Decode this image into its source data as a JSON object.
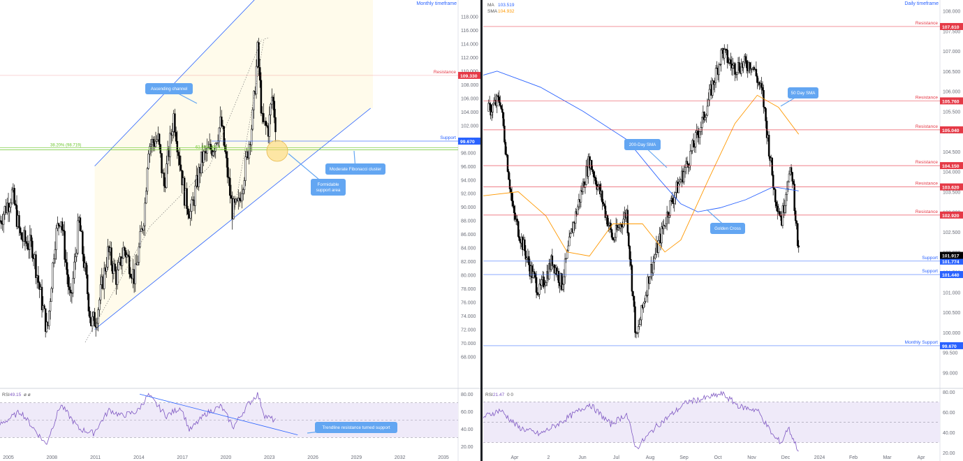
{
  "colors": {
    "up": "#000000",
    "down": "#000000",
    "resistance": "#e53946",
    "support": "#2962ff",
    "channel": "#2962ff",
    "channel_fill": "#fffbeb",
    "fib": "#6ac52a",
    "ma": "#2962ff",
    "sma": "#ff9800",
    "rsi": "#7e57c2",
    "rsi_band": "#efeaf9",
    "callout": "#63a6f2",
    "callout_text": "#ffffff",
    "circle": "#fbd974"
  },
  "chart_data": [
    {
      "type": "candlestick",
      "timeframe_label": "Monthly timeframe",
      "x_axis": {
        "type": "date",
        "range": [
          "2005-01",
          "2036-06"
        ],
        "ticks": [
          "2005",
          "2008",
          "2011",
          "2014",
          "2017",
          "2020",
          "2023",
          "2026",
          "2029",
          "2032",
          "2035"
        ]
      },
      "y_axis": {
        "range": [
          66.0,
          120.0
        ],
        "ticks": [
          "118.000",
          "116.000",
          "114.000",
          "112.000",
          "110.000",
          "108.000",
          "106.000",
          "104.000",
          "102.000",
          "100.000",
          "98.000",
          "96.000",
          "94.000",
          "92.000",
          "90.000",
          "88.000",
          "86.000",
          "84.000",
          "82.000",
          "80.000",
          "78.000",
          "76.000",
          "74.000",
          "72.000",
          "70.000",
          "68.000"
        ]
      },
      "ohlc_anchors": [
        {
          "date": "2005-01",
          "close": 88.0
        },
        {
          "date": "2005-11",
          "close": 92.0
        },
        {
          "date": "2006-06",
          "close": 85.5
        },
        {
          "date": "2007-04",
          "close": 84.0
        },
        {
          "date": "2007-10",
          "close": 77.5
        },
        {
          "date": "2008-04",
          "close": 71.5
        },
        {
          "date": "2008-10",
          "close": 85.0
        },
        {
          "date": "2009-03",
          "close": 89.0
        },
        {
          "date": "2009-11",
          "close": 75.5
        },
        {
          "date": "2010-06",
          "close": 88.0
        },
        {
          "date": "2011-04",
          "close": 73.0
        },
        {
          "date": "2011-08",
          "close": 73.5
        },
        {
          "date": "2012-06",
          "close": 83.5
        },
        {
          "date": "2013-01",
          "close": 79.5
        },
        {
          "date": "2013-07",
          "close": 84.0
        },
        {
          "date": "2014-04",
          "close": 79.5
        },
        {
          "date": "2014-12",
          "close": 89.5
        },
        {
          "date": "2015-03",
          "close": 99.0
        },
        {
          "date": "2015-11",
          "close": 100.0
        },
        {
          "date": "2016-04",
          "close": 93.0
        },
        {
          "date": "2016-12",
          "close": 103.5
        },
        {
          "date": "2017-09",
          "close": 91.5
        },
        {
          "date": "2018-02",
          "close": 89.0
        },
        {
          "date": "2018-11",
          "close": 97.0
        },
        {
          "date": "2019-09",
          "close": 99.0
        },
        {
          "date": "2020-03",
          "close": 102.5
        },
        {
          "date": "2020-12",
          "close": 89.5
        },
        {
          "date": "2021-05",
          "close": 90.0
        },
        {
          "date": "2021-11",
          "close": 96.0
        },
        {
          "date": "2022-05",
          "close": 103.0
        },
        {
          "date": "2022-09",
          "close": 113.0
        },
        {
          "date": "2023-01",
          "close": 102.0
        },
        {
          "date": "2023-06",
          "close": 101.5
        },
        {
          "date": "2023-09",
          "close": 106.5
        },
        {
          "date": "2023-12",
          "close": 101.9
        }
      ],
      "levels": [
        {
          "kind": "resistance",
          "label": "Resistance",
          "value": 109.33,
          "tag": "109.330"
        },
        {
          "kind": "support",
          "label": "Support",
          "value": 99.67,
          "tag": "99.670"
        }
      ],
      "fibonacci": [
        {
          "label": "38.20% (98.719)",
          "value": 98.719
        },
        {
          "label": "61.80% (98.4__)",
          "value": 98.4
        }
      ],
      "channel": {
        "upper": [
          {
            "date": "2011-07",
            "value": 96.0
          },
          {
            "date": "2024-07",
            "value": 125.0
          }
        ],
        "lower": [
          {
            "date": "2011-07",
            "value": 72.0
          },
          {
            "date": "2030-06",
            "value": 104.5
          }
        ]
      },
      "annotations": [
        "Ascending channel",
        "Moderate Fibonacci cluster",
        "Formidable support area"
      ],
      "rsi": {
        "label": "RSI",
        "value": "49.15",
        "params": "ø  ø",
        "y_ticks": [
          "80.00",
          "60.00",
          "40.00",
          "20.00"
        ],
        "y_range": [
          15,
          85
        ],
        "band": [
          30,
          70
        ],
        "anchors": [
          {
            "date": "2005-01",
            "value": 45
          },
          {
            "date": "2006-06",
            "value": 60
          },
          {
            "date": "2008-03",
            "value": 22
          },
          {
            "date": "2009-03",
            "value": 68
          },
          {
            "date": "2010-06",
            "value": 40
          },
          {
            "date": "2011-06",
            "value": 35
          },
          {
            "date": "2012-07",
            "value": 62
          },
          {
            "date": "2013-05",
            "value": 55
          },
          {
            "date": "2014-06",
            "value": 60
          },
          {
            "date": "2015-03",
            "value": 79
          },
          {
            "date": "2016-06",
            "value": 55
          },
          {
            "date": "2017-06",
            "value": 65
          },
          {
            "date": "2018-01",
            "value": 38
          },
          {
            "date": "2019-03",
            "value": 58
          },
          {
            "date": "2020-03",
            "value": 66
          },
          {
            "date": "2021-01",
            "value": 42
          },
          {
            "date": "2022-01",
            "value": 68
          },
          {
            "date": "2022-09",
            "value": 80
          },
          {
            "date": "2023-03",
            "value": 55
          },
          {
            "date": "2023-12",
            "value": 49.15
          }
        ],
        "trendline": [
          {
            "date": "2014-08",
            "value": 80
          },
          {
            "date": "2025-06",
            "value": 33
          }
        ],
        "annotation": "Trendline resistance turned support"
      }
    },
    {
      "type": "candlestick",
      "timeframe_label": "Daily timeframe",
      "legend": [
        {
          "name": "MA",
          "value": "103.519"
        },
        {
          "name": "SMA",
          "value": "104.932"
        }
      ],
      "x_axis": {
        "type": "date",
        "range": [
          "2023-02-20",
          "2024-04-25"
        ],
        "ticks": [
          "Apr",
          "2",
          "Jun",
          "Jul",
          "Aug",
          "Sep",
          "Oct",
          "Nov",
          "Dec",
          "2024",
          "Feb",
          "Mar",
          "Apr"
        ]
      },
      "y_axis": {
        "range": [
          98.8,
          108.2
        ],
        "ticks": [
          "108.000",
          "107.500",
          "107.000",
          "106.500",
          "106.000",
          "105.500",
          "105.000",
          "104.500",
          "104.000",
          "103.500",
          "103.000",
          "102.500",
          "102.000",
          "101.500",
          "101.000",
          "100.500",
          "100.000",
          "99.500",
          "99.000"
        ]
      },
      "last_price": {
        "value": 101.917,
        "tag": "101.917"
      },
      "ohlc_anchors": [
        {
          "date": "2023-02-25",
          "close": 105.5
        },
        {
          "date": "2023-03-08",
          "close": 105.8
        },
        {
          "date": "2023-03-20",
          "close": 103.0
        },
        {
          "date": "2023-04-05",
          "close": 101.6
        },
        {
          "date": "2023-04-14",
          "close": 101.0
        },
        {
          "date": "2023-04-26",
          "close": 101.8
        },
        {
          "date": "2023-05-05",
          "close": 101.2
        },
        {
          "date": "2023-05-15",
          "close": 102.6
        },
        {
          "date": "2023-05-31",
          "close": 104.3
        },
        {
          "date": "2023-06-12",
          "close": 103.3
        },
        {
          "date": "2023-06-22",
          "close": 102.3
        },
        {
          "date": "2023-07-05",
          "close": 103.0
        },
        {
          "date": "2023-07-14",
          "close": 99.8
        },
        {
          "date": "2023-07-26",
          "close": 101.4
        },
        {
          "date": "2023-08-14",
          "close": 103.1
        },
        {
          "date": "2023-08-31",
          "close": 104.2
        },
        {
          "date": "2023-09-15",
          "close": 105.3
        },
        {
          "date": "2023-10-03",
          "close": 107.0
        },
        {
          "date": "2023-10-13",
          "close": 106.6
        },
        {
          "date": "2023-10-31",
          "close": 106.7
        },
        {
          "date": "2023-11-10",
          "close": 105.9
        },
        {
          "date": "2023-11-21",
          "close": 103.5
        },
        {
          "date": "2023-11-28",
          "close": 102.8
        },
        {
          "date": "2023-12-04",
          "close": 103.9
        },
        {
          "date": "2023-12-08",
          "close": 103.9
        },
        {
          "date": "2023-12-11",
          "close": 102.9
        },
        {
          "date": "2023-12-14",
          "close": 101.917
        }
      ],
      "ma_200": {
        "label": "200-Day SMA",
        "anchors": [
          {
            "date": "2023-02-20",
            "value": 106.4
          },
          {
            "date": "2023-03-05",
            "value": 106.5
          },
          {
            "date": "2023-04-15",
            "value": 106.1
          },
          {
            "date": "2023-05-25",
            "value": 105.5
          },
          {
            "date": "2023-07-05",
            "value": 104.8
          },
          {
            "date": "2023-08-05",
            "value": 103.8
          },
          {
            "date": "2023-08-25",
            "value": 103.2
          },
          {
            "date": "2023-09-10",
            "value": 103.0
          },
          {
            "date": "2023-10-01",
            "value": 103.1
          },
          {
            "date": "2023-10-25",
            "value": 103.3
          },
          {
            "date": "2023-11-20",
            "value": 103.62
          },
          {
            "date": "2023-12-14",
            "value": 103.52
          }
        ]
      },
      "sma_50": {
        "label": "50 Day SMA",
        "anchors": [
          {
            "date": "2023-02-20",
            "value": 103.4
          },
          {
            "date": "2023-03-25",
            "value": 103.5
          },
          {
            "date": "2023-04-20",
            "value": 102.9
          },
          {
            "date": "2023-05-10",
            "value": 102.0
          },
          {
            "date": "2023-05-31",
            "value": 101.9
          },
          {
            "date": "2023-06-22",
            "value": 102.7
          },
          {
            "date": "2023-07-20",
            "value": 102.7
          },
          {
            "date": "2023-08-10",
            "value": 102.0
          },
          {
            "date": "2023-08-25",
            "value": 102.3
          },
          {
            "date": "2023-09-20",
            "value": 103.8
          },
          {
            "date": "2023-10-15",
            "value": 105.2
          },
          {
            "date": "2023-11-05",
            "value": 105.9
          },
          {
            "date": "2023-11-25",
            "value": 105.6
          },
          {
            "date": "2023-12-14",
            "value": 104.93
          }
        ]
      },
      "levels": [
        {
          "kind": "resistance",
          "label": "Resistance",
          "value": 107.61,
          "tag": "107.610"
        },
        {
          "kind": "resistance",
          "label": "Resistance",
          "value": 105.76,
          "tag": "105.760"
        },
        {
          "kind": "resistance",
          "label": "Resistance",
          "value": 105.04,
          "tag": "105.040"
        },
        {
          "kind": "resistance",
          "label": "Resistance",
          "value": 104.15,
          "tag": "104.150"
        },
        {
          "kind": "resistance",
          "label": "Resistance",
          "value": 103.62,
          "tag": "103.620"
        },
        {
          "kind": "resistance",
          "label": "Resistance",
          "value": 102.92,
          "tag": "102.920"
        },
        {
          "kind": "support",
          "label": "Support",
          "value": 101.774,
          "tag": "101.774"
        },
        {
          "kind": "support",
          "label": "Support",
          "value": 101.44,
          "tag": "101.440"
        },
        {
          "kind": "support",
          "label": "Monthly Support",
          "value": 99.67,
          "tag": "99.670"
        }
      ],
      "annotations": [
        "200-Day SMA",
        "50 Day SMA",
        "Golden Cross"
      ],
      "rsi": {
        "label": "RSI",
        "value": "21.47",
        "params": "0  0",
        "y_ticks": [
          "80.00",
          "60.00",
          "40.00",
          "20.00"
        ],
        "y_range": [
          20,
          82
        ],
        "band": [
          30,
          70
        ],
        "anchors": [
          {
            "date": "2023-02-20",
            "value": 55
          },
          {
            "date": "2023-03-08",
            "value": 62
          },
          {
            "date": "2023-03-25",
            "value": 45
          },
          {
            "date": "2023-04-14",
            "value": 38
          },
          {
            "date": "2023-05-01",
            "value": 48
          },
          {
            "date": "2023-05-31",
            "value": 68
          },
          {
            "date": "2023-06-20",
            "value": 48
          },
          {
            "date": "2023-07-05",
            "value": 58
          },
          {
            "date": "2023-07-14",
            "value": 24
          },
          {
            "date": "2023-08-01",
            "value": 45
          },
          {
            "date": "2023-08-31",
            "value": 70
          },
          {
            "date": "2023-09-15",
            "value": 73
          },
          {
            "date": "2023-10-03",
            "value": 78
          },
          {
            "date": "2023-10-20",
            "value": 65
          },
          {
            "date": "2023-11-05",
            "value": 62
          },
          {
            "date": "2023-11-21",
            "value": 35
          },
          {
            "date": "2023-11-28",
            "value": 30
          },
          {
            "date": "2023-12-04",
            "value": 45
          },
          {
            "date": "2023-12-14",
            "value": 21.47
          }
        ]
      }
    }
  ]
}
